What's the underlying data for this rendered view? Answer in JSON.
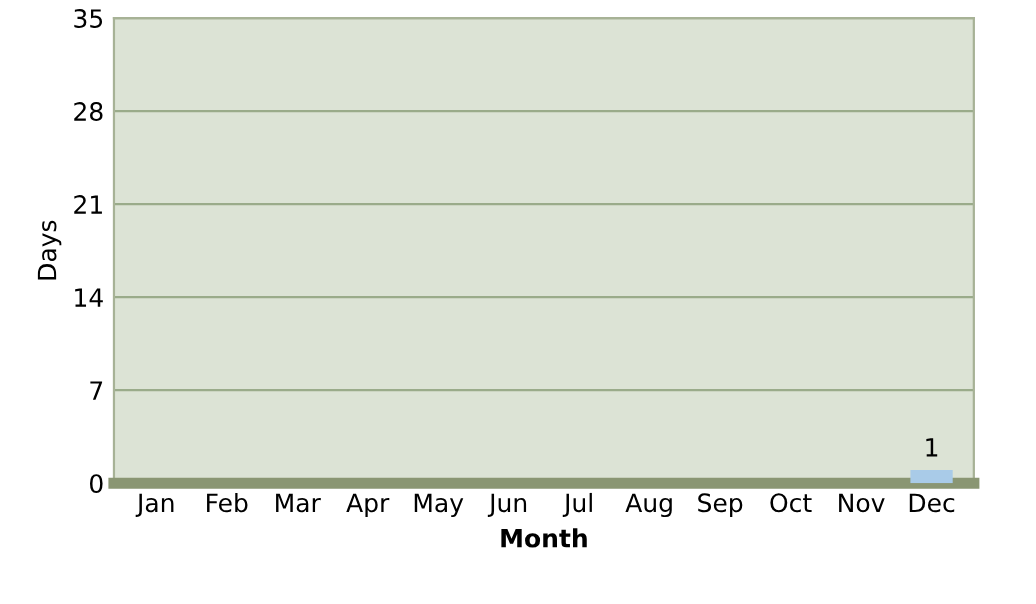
{
  "chart_data": {
    "type": "bar",
    "xlabel": "Month",
    "ylabel": "Days",
    "categories": [
      "Jan",
      "Feb",
      "Mar",
      "Apr",
      "May",
      "Jun",
      "Jul",
      "Aug",
      "Sep",
      "Oct",
      "Nov",
      "Dec"
    ],
    "values": [
      0,
      0,
      0,
      0,
      0,
      0,
      0,
      0,
      0,
      0,
      0,
      1
    ],
    "value_labels": [
      null,
      null,
      null,
      null,
      null,
      null,
      null,
      null,
      null,
      null,
      null,
      "1"
    ],
    "color": "#a9cbe8",
    "ylim": [
      0,
      35
    ],
    "yticks": [
      0,
      7,
      14,
      21,
      28,
      35
    ],
    "grid": "y"
  }
}
